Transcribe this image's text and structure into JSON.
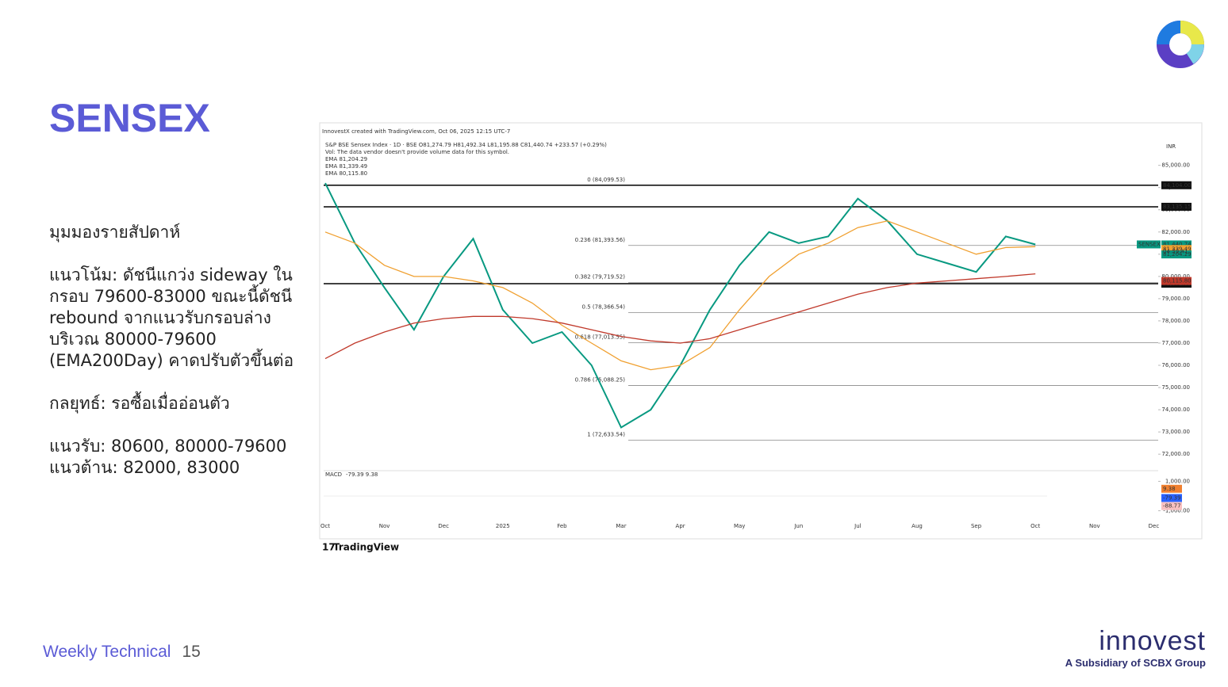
{
  "slide": {
    "title": "SENSEX",
    "paragraphs": [
      "มุมมองรายสัปดาห์",
      "แนวโน้ม: ดัชนีแกว่ง sideway ใน กรอบ 79600-83000 ขณะนี้ดัชนี rebound จากแนวรับกรอบล่าง บริเวณ 80000-79600 (EMA200Day) คาดปรับตัวขึ้นต่อ",
      "กลยุทธ์: รอซื้อเมื่ออ่อนตัว",
      "แนวรับ: 80600, 80000-79600",
      "แนวต้าน: 82000, 83000"
    ],
    "footer": {
      "label": "Weekly Technical",
      "page": "15"
    },
    "brand": {
      "name": "innovest",
      "tagline": "A Subsidiary of SCBX Group"
    }
  },
  "chart_data": {
    "type": "line",
    "credit": "InnovestX created with TradingView.com, Oct 06, 2025 12:15 UTC-7",
    "header": [
      "S&P BSE Sensex Index · 1D · BSE  O81,274.79  H81,492.34  L81,195.88  C81,440.74  +233.57 (+0.29%)",
      "Vol: The data vendor doesn't provide volume data for this symbol.",
      "EMA  81,204.29",
      "EMA  81,339.49",
      "EMA  80,115.80"
    ],
    "currency": "INR",
    "watermark": "TradingView",
    "categories": [
      "Oct",
      null,
      "Nov",
      null,
      "Dec",
      null,
      "2025",
      null,
      "Feb",
      null,
      "Mar",
      null,
      "Apr",
      null,
      "May",
      null,
      "Jun",
      null,
      "Jul",
      null,
      "Aug",
      null,
      "Sep",
      null,
      "Oct",
      null,
      "Nov",
      null,
      "Dec",
      null
    ],
    "series": [
      {
        "name": "SENSEX",
        "color": "#089981",
        "values": [
          84200,
          81500,
          79500,
          77600,
          80000,
          81700,
          78500,
          77000,
          77500,
          76000,
          73200,
          74000,
          76000,
          78500,
          80500,
          82000,
          81500,
          81800,
          83500,
          82500,
          81000,
          80600,
          80200,
          81800,
          81440.74,
          null,
          null,
          null,
          null,
          null
        ]
      },
      {
        "name": "EMA",
        "color": "#f0a030",
        "values": [
          82000,
          81500,
          80500,
          80000,
          80000,
          79800,
          79500,
          78800,
          77800,
          77000,
          76200,
          75800,
          76000,
          76800,
          78500,
          80000,
          81000,
          81500,
          82200,
          82500,
          82000,
          81500,
          81000,
          81300,
          81339.49,
          null,
          null,
          null,
          null,
          null
        ]
      },
      {
        "name": "EMA",
        "color": "#c0392b",
        "values": [
          76300,
          77000,
          77500,
          77900,
          78100,
          78200,
          78200,
          78100,
          77900,
          77600,
          77300,
          77100,
          77000,
          77200,
          77600,
          78000,
          78400,
          78800,
          79200,
          79500,
          79700,
          79800,
          79900,
          80000,
          80115.8,
          null,
          null,
          null,
          null,
          null
        ]
      }
    ],
    "ylim": [
      71400,
      86200
    ],
    "yticks": [
      {
        "value": 72000,
        "label": "72,000.00"
      },
      {
        "value": 73000,
        "label": "73,000.00"
      },
      {
        "value": 74000,
        "label": "74,000.00"
      },
      {
        "value": 75000,
        "label": "75,000.00"
      },
      {
        "value": 76000,
        "label": "76,000.00"
      },
      {
        "value": 77000,
        "label": "77,000.00"
      },
      {
        "value": 78000,
        "label": "78,000.00"
      },
      {
        "value": 79000,
        "label": "79,000.00"
      },
      {
        "value": 80000,
        "label": "80,000.00"
      },
      {
        "value": 81000,
        "label": "81,000.00"
      },
      {
        "value": 82000,
        "label": "82,000.00"
      },
      {
        "value": 83000,
        "label": "83,000.00"
      },
      {
        "value": 84000,
        "label": "84,000.00"
      },
      {
        "value": 85000,
        "label": "85,000.00"
      }
    ],
    "levels": [
      {
        "value": 84104,
        "label": "84,104.00"
      },
      {
        "value": 83135.15,
        "label": "83,135.15"
      },
      {
        "value": 79672.85,
        "label": "79,672.85"
      }
    ],
    "price_tags": [
      {
        "value": 81440.74,
        "label": "81,440.74",
        "color": "#089981"
      },
      {
        "value": 81339.49,
        "label": "81,339.49",
        "color": "#f0a030"
      },
      {
        "value": 81204.29,
        "label": "81,204.29",
        "color": "#089981"
      },
      {
        "value": 80115.8,
        "label": "80,115.80",
        "color": "#c0392b"
      }
    ],
    "countdown": "04:59:41",
    "fib": [
      {
        "value": 84099.53,
        "label": "0 (84,099.53)"
      },
      {
        "value": 81393.56,
        "label": "0.236 (81,393.56)"
      },
      {
        "value": 79719.52,
        "label": "0.382 (79,719.52)"
      },
      {
        "value": 78366.54,
        "label": "0.5 (78,366.54)"
      },
      {
        "value": 77013.55,
        "label": "0.618 (77,013.55)"
      },
      {
        "value": 75088.25,
        "label": "0.786 (75,088.25)"
      },
      {
        "value": 72633.54,
        "label": "1 (72,633.54)"
      }
    ],
    "macd": {
      "title": "MACD",
      "readout": "-79.39  9.38",
      "ylim": [
        -1400,
        1400
      ],
      "yticks": [
        {
          "value": 1000,
          "label": "1,000.00"
        },
        {
          "value": -1000,
          "label": "-1,000.00"
        }
      ],
      "tags": [
        {
          "value": 9.38,
          "label": "9.38",
          "color": "#f08030"
        },
        {
          "value": -79.39,
          "label": "-79.39",
          "color": "#2962ff"
        },
        {
          "value": -88.77,
          "label": "-88.77",
          "color": "#f8c0c0"
        }
      ]
    }
  }
}
